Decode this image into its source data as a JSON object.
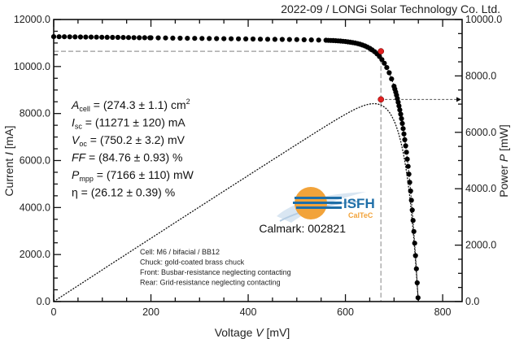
{
  "chart_data": {
    "type": "scatter",
    "title": "2022-09 / LONGi Solar Technology Co. Ltd.",
    "xlabel": "Voltage V [mV]",
    "xlabel_parts": {
      "pre": "Voltage ",
      "var": "V",
      "post": " [mV]"
    },
    "ylabel": "Current I [mA]",
    "ylabel_parts": {
      "pre": "Current ",
      "var": "I",
      "post": " [mA]"
    },
    "y2label": "Power P [mW]",
    "y2label_parts": {
      "pre": "Power ",
      "var": "P",
      "post": " [mW]"
    },
    "xlim": [
      0,
      840
    ],
    "ylim": [
      0,
      12000
    ],
    "y2lim": [
      0,
      10000
    ],
    "x_ticks": [
      "0",
      "200",
      "400",
      "600",
      "800"
    ],
    "x_tick_values": [
      0,
      200,
      400,
      600,
      800
    ],
    "y_ticks": [
      "0.0",
      "2000.0",
      "4000.0",
      "6000.0",
      "8000.0",
      "10000.0",
      "12000.0"
    ],
    "y_tick_values": [
      0,
      2000,
      4000,
      6000,
      8000,
      10000,
      12000
    ],
    "y2_ticks": [
      "0.0",
      "2000.0",
      "4000.0",
      "6000.0",
      "8000.0",
      "10000.0"
    ],
    "y2_tick_values": [
      0,
      2000,
      4000,
      6000,
      8000,
      10000
    ],
    "mpp": {
      "voltage": 673,
      "current": 10648,
      "power": 7166
    },
    "isc": 11271,
    "voc": 750.2,
    "series": [
      {
        "name": "I-V curve",
        "axis": "left",
        "style": "dots",
        "color": "#000000"
      },
      {
        "name": "P-V curve",
        "axis": "right",
        "style": "dotted-line",
        "color": "#000000"
      }
    ],
    "mpp_color": "#e02020",
    "guide_color": "#999999"
  },
  "parameters": [
    {
      "sym": "A",
      "sub": "cell",
      "text": " = (274.3 ± 1.1) cm",
      "sup": "2",
      "italic": true
    },
    {
      "sym": "I",
      "sub": "sc",
      "text": " = (11271 ± 120) mA",
      "sup": "",
      "italic": true
    },
    {
      "sym": "V",
      "sub": "oc",
      "text": " = (750.2 ± 3.2) mV",
      "sup": "",
      "italic": true
    },
    {
      "sym": "FF",
      "sub": "",
      "text": " = (84.76 ± 0.93) %",
      "sup": "",
      "italic": true
    },
    {
      "sym": "P",
      "sub": "mpp",
      "text": " = (7166 ± 110) mW",
      "sup": "",
      "italic": true
    },
    {
      "sym": "η",
      "sub": "",
      "text": " = (26.12 ± 0.39) %",
      "sup": "",
      "italic": false
    }
  ],
  "info_lines": [
    "Cell: M6 / bifacial / BB12",
    "Chuck: gold-coated brass chuck",
    "Front: Busbar-resistance neglecting contacting",
    "Rear: Grid-resistance neglecting contacting"
  ],
  "calmark": "Calmark: 002821",
  "logo": {
    "name": "ISFH",
    "sub": "CalTeC",
    "blue": "#1f6fa8",
    "orange": "#f2a33a"
  }
}
